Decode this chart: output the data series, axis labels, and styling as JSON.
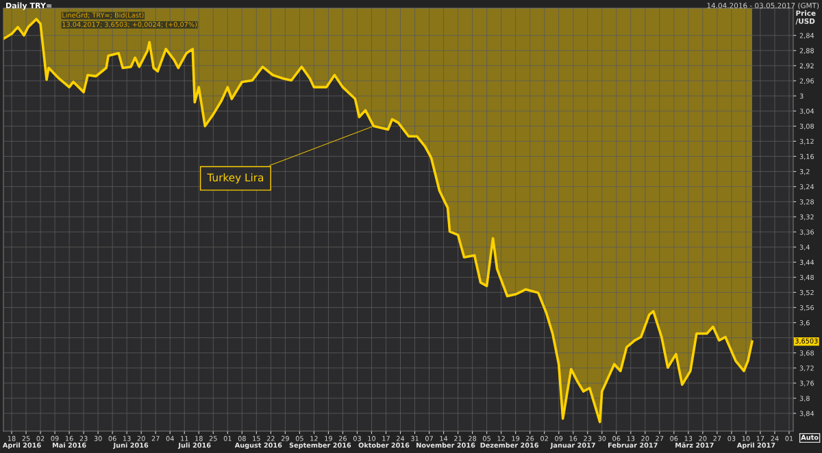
{
  "chart_data": {
    "type": "area",
    "title": "Daily TRY=",
    "subtitle": "14.04.2016 - 03.05.2017 (GMT)",
    "ylabel": "Price\n/USD",
    "x": [
      "2016-04-14",
      "2016-04-18",
      "2016-04-21",
      "2016-04-24",
      "2016-04-26",
      "2016-04-30",
      "2016-05-02",
      "2016-05-05",
      "2016-05-06",
      "2016-05-11",
      "2016-05-16",
      "2016-05-18",
      "2016-05-23",
      "2016-05-25",
      "2016-05-29",
      "2016-06-03",
      "2016-06-04",
      "2016-06-09",
      "2016-06-11",
      "2016-06-15",
      "2016-06-17",
      "2016-06-19",
      "2016-06-23",
      "2016-06-24",
      "2016-06-26",
      "2016-06-28",
      "2016-07-02",
      "2016-07-06",
      "2016-07-08",
      "2016-07-12",
      "2016-07-15",
      "2016-07-16",
      "2016-07-18",
      "2016-07-21",
      "2016-07-25",
      "2016-07-29",
      "2016-08-01",
      "2016-08-03",
      "2016-08-08",
      "2016-08-13",
      "2016-08-18",
      "2016-08-23",
      "2016-08-28",
      "2016-09-01",
      "2016-09-06",
      "2016-09-10",
      "2016-09-12",
      "2016-09-18",
      "2016-09-22",
      "2016-09-26",
      "2016-10-02",
      "2016-10-04",
      "2016-10-07",
      "2016-10-11",
      "2016-10-18",
      "2016-10-20",
      "2016-10-23",
      "2016-10-28",
      "2016-11-01",
      "2016-11-05",
      "2016-11-08",
      "2016-11-12",
      "2016-11-16",
      "2016-11-17",
      "2016-11-21",
      "2016-11-24",
      "2016-11-29",
      "2016-12-02",
      "2016-12-05",
      "2016-12-08",
      "2016-12-10",
      "2016-12-15",
      "2016-12-19",
      "2016-12-24",
      "2016-12-30",
      "2017-01-03",
      "2017-01-06",
      "2017-01-09",
      "2017-01-11",
      "2017-01-15",
      "2017-01-18",
      "2017-01-21",
      "2017-01-24",
      "2017-01-29",
      "2017-01-30",
      "2017-02-05",
      "2017-02-08",
      "2017-02-11",
      "2017-02-15",
      "2017-02-18",
      "2017-02-22",
      "2017-02-24",
      "2017-02-28",
      "2017-03-03",
      "2017-03-07",
      "2017-03-10",
      "2017-03-14",
      "2017-03-17",
      "2017-03-22",
      "2017-03-25",
      "2017-03-28",
      "2017-03-31",
      "2017-04-05",
      "2017-04-09",
      "2017-04-11",
      "2017-04-13"
    ],
    "series": [
      {
        "color": "#ffd200",
        "values": [
          2.849,
          2.836,
          2.818,
          2.84,
          2.818,
          2.797,
          2.809,
          2.957,
          2.926,
          2.954,
          2.977,
          2.963,
          2.99,
          2.945,
          2.948,
          2.926,
          2.894,
          2.887,
          2.926,
          2.923,
          2.899,
          2.923,
          2.881,
          2.858,
          2.926,
          2.935,
          2.876,
          2.905,
          2.926,
          2.887,
          2.876,
          3.017,
          2.977,
          3.08,
          3.049,
          3.013,
          2.977,
          3.008,
          2.963,
          2.959,
          2.923,
          2.945,
          2.954,
          2.959,
          2.923,
          2.954,
          2.977,
          2.977,
          2.945,
          2.977,
          3.008,
          3.056,
          3.038,
          3.08,
          3.089,
          3.062,
          3.071,
          3.107,
          3.107,
          3.134,
          3.164,
          3.251,
          3.296,
          3.359,
          3.368,
          3.427,
          3.422,
          3.494,
          3.503,
          3.377,
          3.458,
          3.53,
          3.525,
          3.512,
          3.521,
          3.575,
          3.629,
          3.71,
          3.854,
          3.723,
          3.755,
          3.782,
          3.773,
          3.863,
          3.782,
          3.71,
          3.728,
          3.665,
          3.647,
          3.638,
          3.579,
          3.57,
          3.638,
          3.719,
          3.683,
          3.764,
          3.728,
          3.629,
          3.629,
          3.611,
          3.647,
          3.638,
          3.701,
          3.728,
          3.701,
          3.65
        ]
      }
    ],
    "xlim": [
      "2016-04-14",
      "2017-05-03"
    ],
    "xticks": [
      {
        "value": "2016-04-18",
        "label": "18"
      },
      {
        "value": "2016-04-25",
        "label": "25"
      },
      {
        "value": "2016-05-02",
        "label": "02"
      },
      {
        "value": "2016-05-09",
        "label": "09"
      },
      {
        "value": "2016-05-16",
        "label": "16"
      },
      {
        "value": "2016-05-23",
        "label": "23"
      },
      {
        "value": "2016-05-30",
        "label": "30"
      },
      {
        "value": "2016-06-06",
        "label": "06"
      },
      {
        "value": "2016-06-13",
        "label": "13"
      },
      {
        "value": "2016-06-20",
        "label": "20"
      },
      {
        "value": "2016-06-27",
        "label": "27"
      },
      {
        "value": "2016-07-04",
        "label": "04"
      },
      {
        "value": "2016-07-11",
        "label": "11"
      },
      {
        "value": "2016-07-18",
        "label": "18"
      },
      {
        "value": "2016-07-25",
        "label": "25"
      },
      {
        "value": "2016-08-01",
        "label": "01"
      },
      {
        "value": "2016-08-08",
        "label": "08"
      },
      {
        "value": "2016-08-15",
        "label": "15"
      },
      {
        "value": "2016-08-22",
        "label": "22"
      },
      {
        "value": "2016-08-29",
        "label": "29"
      },
      {
        "value": "2016-09-05",
        "label": "05"
      },
      {
        "value": "2016-09-12",
        "label": "12"
      },
      {
        "value": "2016-09-19",
        "label": "19"
      },
      {
        "value": "2016-09-26",
        "label": "26"
      },
      {
        "value": "2016-10-03",
        "label": "03"
      },
      {
        "value": "2016-10-10",
        "label": "10"
      },
      {
        "value": "2016-10-17",
        "label": "17"
      },
      {
        "value": "2016-10-24",
        "label": "24"
      },
      {
        "value": "2016-10-31",
        "label": "31"
      },
      {
        "value": "2016-11-07",
        "label": "07"
      },
      {
        "value": "2016-11-14",
        "label": "14"
      },
      {
        "value": "2016-11-21",
        "label": "21"
      },
      {
        "value": "2016-11-28",
        "label": "28"
      },
      {
        "value": "2016-12-05",
        "label": "05"
      },
      {
        "value": "2016-12-12",
        "label": "12"
      },
      {
        "value": "2016-12-19",
        "label": "19"
      },
      {
        "value": "2016-12-26",
        "label": "26"
      },
      {
        "value": "2017-01-02",
        "label": "02"
      },
      {
        "value": "2017-01-09",
        "label": "09"
      },
      {
        "value": "2017-01-16",
        "label": "16"
      },
      {
        "value": "2017-01-23",
        "label": "23"
      },
      {
        "value": "2017-01-30",
        "label": "30"
      },
      {
        "value": "2017-02-06",
        "label": "06"
      },
      {
        "value": "2017-02-13",
        "label": "13"
      },
      {
        "value": "2017-02-20",
        "label": "20"
      },
      {
        "value": "2017-02-27",
        "label": "27"
      },
      {
        "value": "2017-03-06",
        "label": "06"
      },
      {
        "value": "2017-03-13",
        "label": "13"
      },
      {
        "value": "2017-03-20",
        "label": "20"
      },
      {
        "value": "2017-03-27",
        "label": "27"
      },
      {
        "value": "2017-04-03",
        "label": "03"
      },
      {
        "value": "2017-04-10",
        "label": "10"
      },
      {
        "value": "2017-04-17",
        "label": "17"
      },
      {
        "value": "2017-04-24",
        "label": "24"
      },
      {
        "value": "2017-05-01",
        "label": "01"
      }
    ],
    "x2lim": [
      "2016-04-14",
      "2017-05-03"
    ],
    "x2ticks": [
      {
        "value": "2016-04-23",
        "label": "April 2016"
      },
      {
        "value": "2016-05-16",
        "label": "Mai 2016"
      },
      {
        "value": "2016-06-15",
        "label": "Juni 2016"
      },
      {
        "value": "2016-07-16",
        "label": "Juli 2016"
      },
      {
        "value": "2016-08-16",
        "label": "August 2016"
      },
      {
        "value": "2016-09-15",
        "label": "September 2016"
      },
      {
        "value": "2016-10-16",
        "label": "Oktober 2016"
      },
      {
        "value": "2016-11-15",
        "label": "November 2016"
      },
      {
        "value": "2016-12-16",
        "label": "Dezember 2016"
      },
      {
        "value": "2017-01-16",
        "label": "Januar 2017"
      },
      {
        "value": "2017-02-14",
        "label": "Februar 2017"
      },
      {
        "value": "2017-03-16",
        "label": "März 2017"
      },
      {
        "value": "2017-04-15",
        "label": "April 2017"
      }
    ],
    "ylim": [
      3.887,
      2.768
    ],
    "yticks": [
      {
        "value": 2.84,
        "label": "2,84"
      },
      {
        "value": 2.88,
        "label": "2,88"
      },
      {
        "value": 2.92,
        "label": "2,92"
      },
      {
        "value": 2.96,
        "label": "2,96"
      },
      {
        "value": 3,
        "label": "3"
      },
      {
        "value": 3.04,
        "label": "3,04"
      },
      {
        "value": 3.08,
        "label": "3,08"
      },
      {
        "value": 3.12,
        "label": "3,12"
      },
      {
        "value": 3.16,
        "label": "3,16"
      },
      {
        "value": 3.2,
        "label": "3,2"
      },
      {
        "value": 3.24,
        "label": "3,24"
      },
      {
        "value": 3.28,
        "label": "3,28"
      },
      {
        "value": 3.32,
        "label": "3,32"
      },
      {
        "value": 3.36,
        "label": "3,36"
      },
      {
        "value": 3.4,
        "label": "3,4"
      },
      {
        "value": 3.44,
        "label": "3,44"
      },
      {
        "value": 3.48,
        "label": "3,48"
      },
      {
        "value": 3.52,
        "label": "3,52"
      },
      {
        "value": 3.56,
        "label": "3,56"
      },
      {
        "value": 3.6,
        "label": "3,6"
      },
      {
        "value": 3.64,
        "label": null
      },
      {
        "value": 3.68,
        "label": "3,68"
      },
      {
        "value": 3.72,
        "label": "3,72"
      },
      {
        "value": 3.76,
        "label": "3,76"
      },
      {
        "value": 3.8,
        "label": "3,8"
      },
      {
        "value": 3.84,
        "label": "3,84"
      }
    ],
    "grid": true,
    "legend": false,
    "annotations": [
      "LineGrd; TRY=; Bid(Last)",
      "13.04.2017; 3,6503; +0,0024; (+0,07%)",
      {
        "text": "Turkey Lira",
        "x": "2016-10-11",
        "y": 3.08
      },
      "3,6503",
      "Auto"
    ]
  }
}
